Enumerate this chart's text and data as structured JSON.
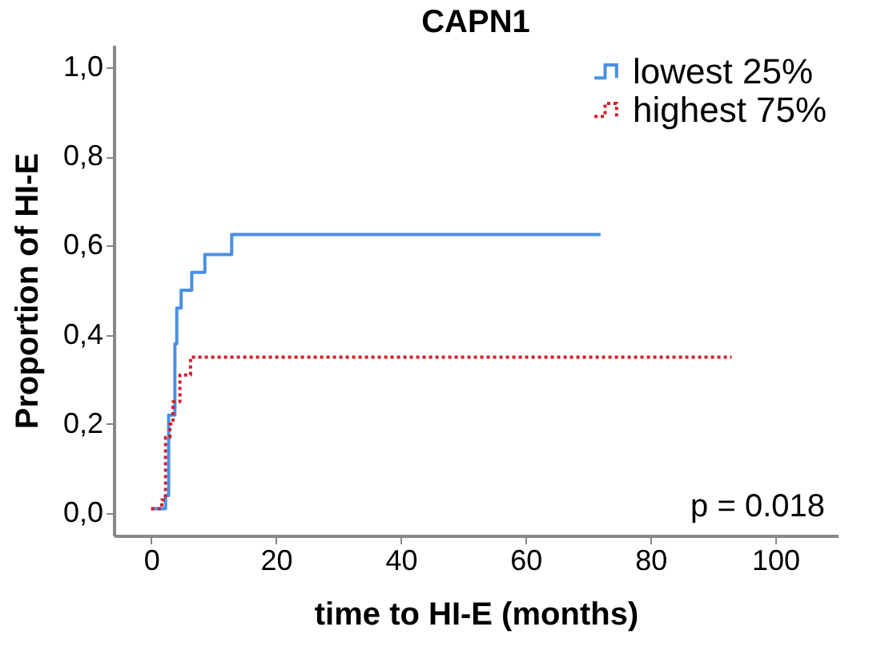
{
  "chart_data": {
    "type": "step",
    "title": "CAPN1",
    "xlabel": "time to HI-E (months)",
    "ylabel": "Proportion of HI-E",
    "series": [
      {
        "name": "lowest 25%",
        "color": "#4a90e2",
        "line_style": "solid",
        "x": [
          0,
          2.3,
          2.8,
          3.8,
          4.1,
          4.8,
          6.5,
          8.6,
          12.9,
          72
        ],
        "values": [
          0.01,
          0.04,
          0.22,
          0.38,
          0.46,
          0.5,
          0.54,
          0.58,
          0.625,
          0.625
        ]
      },
      {
        "name": "highest 75%",
        "color": "#d0202a",
        "line_style": "dotted",
        "x": [
          0,
          1.7,
          2.3,
          3.0,
          3.5,
          4.6,
          6.3,
          93
        ],
        "values": [
          0.01,
          0.03,
          0.17,
          0.2,
          0.25,
          0.31,
          0.35,
          0.35
        ]
      }
    ],
    "xlim": [
      -6,
      110
    ],
    "xticks": [
      0,
      20,
      40,
      60,
      80,
      100
    ],
    "ylim": [
      -0.05,
      1.05
    ],
    "yticks": [
      {
        "value": 0,
        "label": "0,0"
      },
      {
        "value": 0.2,
        "label": "0,2"
      },
      {
        "value": 0.4,
        "label": "0,4"
      },
      {
        "value": 0.6,
        "label": "0,6"
      },
      {
        "value": 0.8,
        "label": "0,8"
      },
      {
        "value": 1,
        "label": "1,0"
      }
    ],
    "legend": "top right",
    "grid": false,
    "annotations": [
      "p = 0.018"
    ]
  }
}
